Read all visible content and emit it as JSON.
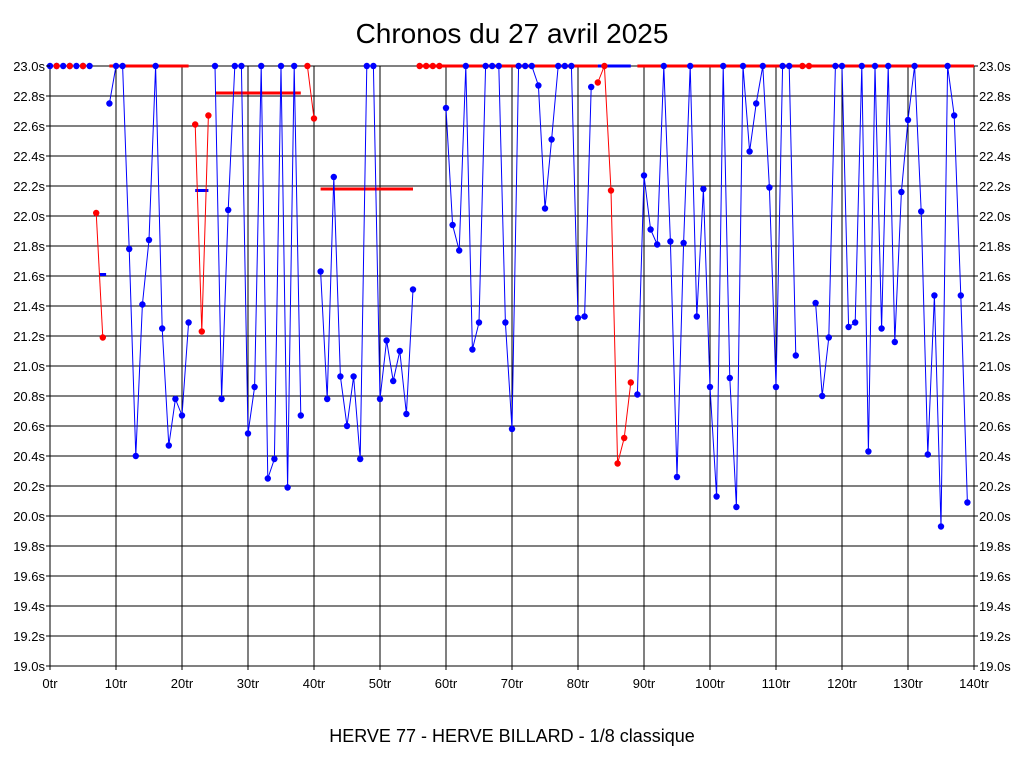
{
  "chart_data": {
    "type": "line",
    "title": "Chronos du 27 avril 2025",
    "caption": "HERVE 77 - HERVE BILLARD - 1/8 classique",
    "x_tick_labels": [
      "0tr",
      "10tr",
      "20tr",
      "30tr",
      "40tr",
      "50tr",
      "60tr",
      "70tr",
      "80tr",
      "90tr",
      "100tr",
      "110tr",
      "120tr",
      "130tr",
      "140tr"
    ],
    "y_tick_labels": [
      "19.0s",
      "19.2s",
      "19.4s",
      "19.6s",
      "19.8s",
      "20.0s",
      "20.2s",
      "20.4s",
      "20.6s",
      "20.8s",
      "21.0s",
      "21.2s",
      "21.4s",
      "21.6s",
      "21.8s",
      "22.0s",
      "22.2s",
      "22.4s",
      "22.6s",
      "22.8s",
      "23.0s"
    ],
    "xlim": [
      0,
      140
    ],
    "ylim": [
      19.0,
      23.0
    ],
    "grid": true,
    "colors": {
      "blue": "#0000ff",
      "red": "#ff0000",
      "grid": "#000000",
      "axis": "#000000"
    },
    "series": [
      {
        "color": "#0000ff",
        "points": [
          [
            0,
            23.0
          ],
          [
            1,
            23.0
          ],
          [
            2,
            23.0
          ],
          [
            3,
            23.0
          ],
          [
            4,
            23.0
          ],
          [
            5,
            23.0
          ],
          [
            6,
            23.0
          ]
        ]
      },
      {
        "color": "#ff0000",
        "points": [
          [
            1,
            23.0
          ],
          [
            3,
            23.0
          ],
          [
            5,
            23.0
          ]
        ]
      },
      {
        "color": "#ff0000",
        "points": [
          [
            7,
            22.02
          ],
          [
            8,
            21.19
          ]
        ]
      },
      {
        "color": "#0000ff",
        "points": [
          [
            9,
            22.75
          ],
          [
            10,
            23.0
          ],
          [
            11,
            23.0
          ],
          [
            12,
            21.78
          ],
          [
            13,
            20.4
          ],
          [
            14,
            21.41
          ],
          [
            15,
            21.84
          ],
          [
            16,
            23.0
          ],
          [
            17,
            21.25
          ],
          [
            18,
            20.47
          ],
          [
            19,
            20.78
          ],
          [
            20,
            20.67
          ],
          [
            21,
            21.29
          ]
        ]
      },
      {
        "color": "#ff0000",
        "points": [
          [
            22,
            22.61
          ],
          [
            23,
            21.23
          ],
          [
            24,
            22.67
          ]
        ]
      },
      {
        "color": "#0000ff",
        "points": [
          [
            25,
            23.0
          ],
          [
            26,
            20.78
          ],
          [
            27,
            22.04
          ],
          [
            28,
            23.0
          ],
          [
            29,
            23.0
          ],
          [
            30,
            20.55
          ],
          [
            31,
            20.86
          ],
          [
            32,
            23.0
          ],
          [
            33,
            20.25
          ],
          [
            34,
            20.38
          ],
          [
            35,
            23.0
          ],
          [
            36,
            20.19
          ],
          [
            37,
            23.0
          ],
          [
            38,
            20.67
          ]
        ]
      },
      {
        "color": "#ff0000",
        "points": [
          [
            39,
            23.0
          ],
          [
            40,
            22.65
          ]
        ]
      },
      {
        "color": "#0000ff",
        "points": [
          [
            41,
            21.63
          ],
          [
            42,
            20.78
          ],
          [
            43,
            22.26
          ],
          [
            44,
            20.93
          ],
          [
            45,
            20.6
          ],
          [
            46,
            20.93
          ],
          [
            47,
            20.38
          ],
          [
            48,
            23.0
          ],
          [
            49,
            23.0
          ],
          [
            50,
            20.78
          ],
          [
            51,
            21.17
          ],
          [
            52,
            20.9
          ],
          [
            53,
            21.1
          ],
          [
            54,
            20.68
          ],
          [
            55,
            21.51
          ]
        ]
      },
      {
        "color": "#ff0000",
        "points": [
          [
            56,
            23.0
          ],
          [
            57,
            23.0
          ],
          [
            58,
            23.0
          ],
          [
            59,
            23.0
          ]
        ]
      },
      {
        "color": "#0000ff",
        "points": [
          [
            60,
            22.72
          ],
          [
            61,
            21.94
          ],
          [
            62,
            21.77
          ],
          [
            63,
            23.0
          ],
          [
            64,
            21.11
          ],
          [
            65,
            21.29
          ],
          [
            66,
            23.0
          ],
          [
            67,
            23.0
          ],
          [
            68,
            23.0
          ],
          [
            69,
            21.29
          ],
          [
            70,
            20.58
          ],
          [
            71,
            23.0
          ],
          [
            72,
            23.0
          ],
          [
            73,
            23.0
          ],
          [
            74,
            22.87
          ],
          [
            75,
            22.05
          ],
          [
            76,
            22.51
          ],
          [
            77,
            23.0
          ],
          [
            78,
            23.0
          ],
          [
            79,
            23.0
          ],
          [
            80,
            21.32
          ],
          [
            81,
            21.33
          ],
          [
            82,
            22.86
          ]
        ]
      },
      {
        "color": "#ff0000",
        "points": [
          [
            83,
            22.89
          ],
          [
            84,
            23.0
          ],
          [
            85,
            22.17
          ],
          [
            86,
            20.35
          ],
          [
            87,
            20.52
          ],
          [
            88,
            20.89
          ]
        ]
      },
      {
        "color": "#0000ff",
        "points": [
          [
            89,
            20.81
          ],
          [
            90,
            22.27
          ],
          [
            91,
            21.91
          ],
          [
            92,
            21.81
          ],
          [
            93,
            23.0
          ],
          [
            94,
            21.83
          ],
          [
            95,
            20.26
          ],
          [
            96,
            21.82
          ],
          [
            97,
            23.0
          ],
          [
            98,
            21.33
          ],
          [
            99,
            22.18
          ],
          [
            100,
            20.86
          ],
          [
            101,
            20.13
          ],
          [
            102,
            23.0
          ],
          [
            103,
            20.92
          ],
          [
            104,
            20.06
          ],
          [
            105,
            23.0
          ],
          [
            106,
            22.43
          ],
          [
            107,
            22.75
          ],
          [
            108,
            23.0
          ],
          [
            109,
            22.19
          ],
          [
            110,
            20.86
          ],
          [
            111,
            23.0
          ],
          [
            112,
            23.0
          ],
          [
            113,
            21.07
          ]
        ]
      },
      {
        "color": "#ff0000",
        "points": [
          [
            114,
            23.0
          ],
          [
            115,
            23.0
          ]
        ]
      },
      {
        "color": "#0000ff",
        "points": [
          [
            116,
            21.42
          ],
          [
            117,
            20.8
          ],
          [
            118,
            21.19
          ],
          [
            119,
            23.0
          ],
          [
            120,
            23.0
          ],
          [
            121,
            21.26
          ],
          [
            122,
            21.29
          ],
          [
            123,
            23.0
          ],
          [
            124,
            20.43
          ],
          [
            125,
            23.0
          ],
          [
            126,
            21.25
          ],
          [
            127,
            23.0
          ],
          [
            128,
            21.16
          ],
          [
            129,
            22.16
          ],
          [
            130,
            22.64
          ],
          [
            131,
            23.0
          ],
          [
            132,
            22.03
          ],
          [
            133,
            20.41
          ],
          [
            134,
            21.47
          ],
          [
            135,
            19.93
          ],
          [
            136,
            23.0
          ],
          [
            137,
            22.67
          ],
          [
            138,
            21.47
          ],
          [
            139,
            20.09
          ]
        ]
      }
    ],
    "average_lines": [
      {
        "color": "#0000ff",
        "x": [
          7.5,
          8.5
        ],
        "y": 21.61
      },
      {
        "color": "#ff0000",
        "x": [
          9,
          21
        ],
        "y": 23.0
      },
      {
        "color": "#0000ff",
        "x": [
          22,
          24
        ],
        "y": 22.17
      },
      {
        "color": "#ff0000",
        "x": [
          25,
          38
        ],
        "y": 22.82
      },
      {
        "color": "#ff0000",
        "x": [
          41,
          55
        ],
        "y": 22.18
      },
      {
        "color": "#ff0000",
        "x": [
          56,
          83
        ],
        "y": 23.0
      },
      {
        "color": "#0000ff",
        "x": [
          83,
          88
        ],
        "y": 23.0
      },
      {
        "color": "#ff0000",
        "x": [
          89,
          140
        ],
        "y": 23.0
      }
    ]
  }
}
